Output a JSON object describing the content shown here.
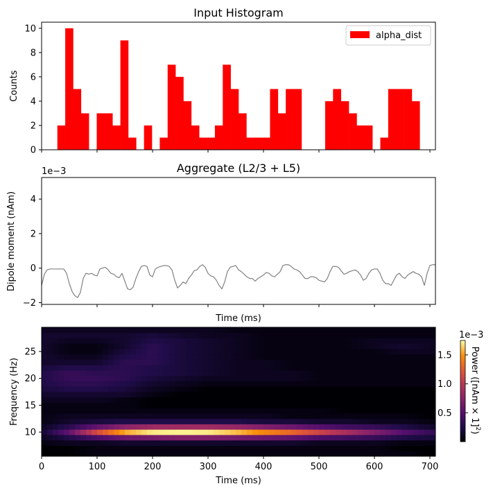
{
  "chart_data": [
    {
      "type": "bar",
      "title": "Input Histogram",
      "xlabel": "",
      "ylabel": "Counts",
      "xlim": [
        0,
        710
      ],
      "ylim": [
        0,
        10.5
      ],
      "yticks": [
        0,
        2,
        4,
        6,
        8,
        10
      ],
      "legend": "top-right",
      "series": [
        {
          "name": "alpha_dist",
          "color": "#ff0000",
          "bin_width": 14.2,
          "bins": [
            {
              "x": 28.4,
              "value": 2
            },
            {
              "x": 42.6,
              "value": 10
            },
            {
              "x": 56.8,
              "value": 5
            },
            {
              "x": 71.0,
              "value": 3
            },
            {
              "x": 99.4,
              "value": 3
            },
            {
              "x": 113.6,
              "value": 3
            },
            {
              "x": 127.8,
              "value": 2
            },
            {
              "x": 142.0,
              "value": 9
            },
            {
              "x": 156.2,
              "value": 1
            },
            {
              "x": 184.6,
              "value": 2
            },
            {
              "x": 213.0,
              "value": 1
            },
            {
              "x": 227.2,
              "value": 7
            },
            {
              "x": 241.4,
              "value": 6
            },
            {
              "x": 255.6,
              "value": 4
            },
            {
              "x": 269.8,
              "value": 2
            },
            {
              "x": 284.0,
              "value": 1
            },
            {
              "x": 298.2,
              "value": 1
            },
            {
              "x": 312.4,
              "value": 2
            },
            {
              "x": 326.6,
              "value": 7
            },
            {
              "x": 340.8,
              "value": 5
            },
            {
              "x": 355.0,
              "value": 3
            },
            {
              "x": 369.2,
              "value": 1
            },
            {
              "x": 383.4,
              "value": 1
            },
            {
              "x": 397.6,
              "value": 1
            },
            {
              "x": 411.8,
              "value": 5
            },
            {
              "x": 426.0,
              "value": 3
            },
            {
              "x": 440.2,
              "value": 5
            },
            {
              "x": 454.4,
              "value": 5
            },
            {
              "x": 511.2,
              "value": 4
            },
            {
              "x": 525.4,
              "value": 5
            },
            {
              "x": 539.6,
              "value": 4
            },
            {
              "x": 553.8,
              "value": 3
            },
            {
              "x": 568.0,
              "value": 2
            },
            {
              "x": 582.2,
              "value": 2
            },
            {
              "x": 610.6,
              "value": 1
            },
            {
              "x": 624.8,
              "value": 5
            },
            {
              "x": 639.0,
              "value": 5
            },
            {
              "x": 653.2,
              "value": 5
            },
            {
              "x": 667.4,
              "value": 4
            }
          ]
        }
      ]
    },
    {
      "type": "line",
      "title": "Aggregate (L2/3 + L5)",
      "xlabel": "Time (ms)",
      "ylabel": "Dipole moment (nAm)",
      "y_scale_label": "1e−3",
      "xlim": [
        0,
        710
      ],
      "ylim": [
        -2.1,
        5.25
      ],
      "yticks": [
        -2,
        0,
        2,
        4
      ],
      "grid": false,
      "series": [
        {
          "color": "#808080",
          "x": [
            0,
            5,
            10,
            15,
            20,
            25,
            30,
            35,
            40,
            45,
            50,
            55,
            60,
            65,
            70,
            75,
            80,
            85,
            90,
            95,
            100,
            105,
            110,
            115,
            120,
            125,
            130,
            135,
            140,
            145,
            150,
            155,
            160,
            165,
            170,
            175,
            180,
            185,
            190,
            195,
            200,
            205,
            210,
            215,
            220,
            225,
            230,
            235,
            240,
            245,
            250,
            255,
            260,
            265,
            270,
            275,
            280,
            285,
            290,
            295,
            300,
            305,
            310,
            315,
            320,
            325,
            330,
            335,
            340,
            345,
            350,
            355,
            360,
            365,
            370,
            375,
            380,
            385,
            390,
            395,
            400,
            405,
            410,
            415,
            420,
            425,
            430,
            435,
            440,
            445,
            450,
            455,
            460,
            465,
            470,
            475,
            480,
            485,
            490,
            495,
            500,
            505,
            510,
            515,
            520,
            525,
            530,
            535,
            540,
            545,
            550,
            555,
            560,
            565,
            570,
            575,
            580,
            585,
            590,
            595,
            600,
            605,
            610,
            615,
            620,
            625,
            630,
            635,
            640,
            645,
            650,
            655,
            660,
            665,
            670,
            675,
            680,
            685,
            690,
            695,
            700,
            705,
            710
          ],
          "values": [
            -1.0,
            -0.35,
            -0.1,
            -0.05,
            -0.05,
            -0.05,
            -0.05,
            -0.05,
            -0.05,
            -0.3,
            -0.9,
            -1.35,
            -1.6,
            -1.7,
            -1.4,
            -0.6,
            -0.3,
            -0.35,
            -0.3,
            -0.4,
            -0.45,
            -0.05,
            0.0,
            0.05,
            -0.1,
            -0.3,
            -0.35,
            -0.5,
            -0.55,
            -0.3,
            -0.75,
            -1.2,
            -1.25,
            -1.1,
            -0.6,
            -0.2,
            0.1,
            0.15,
            0.1,
            -0.4,
            -0.5,
            -0.05,
            0.05,
            0.1,
            0.15,
            0.15,
            0.1,
            -0.1,
            -0.7,
            -1.15,
            -1.0,
            -0.8,
            -0.9,
            -0.6,
            -0.4,
            -0.15,
            -0.1,
            0.1,
            0.2,
            0.05,
            -0.3,
            -0.45,
            -0.5,
            -0.7,
            -1.0,
            -1.2,
            -0.8,
            -0.2,
            0.05,
            0.1,
            0.15,
            -0.1,
            -0.2,
            -0.35,
            -0.5,
            -0.6,
            -0.6,
            -0.75,
            -0.6,
            -0.5,
            -0.4,
            -0.25,
            -0.3,
            -0.45,
            -0.5,
            -0.35,
            -0.2,
            0.15,
            0.2,
            0.2,
            0.1,
            -0.05,
            -0.1,
            -0.2,
            -0.4,
            -0.6,
            -0.6,
            -0.5,
            -0.5,
            -0.55,
            -0.7,
            -0.75,
            -0.8,
            -0.6,
            -0.2,
            0.1,
            0.1,
            0.05,
            -0.15,
            -0.35,
            -0.3,
            -0.2,
            -0.15,
            -0.1,
            -0.2,
            -0.4,
            -0.7,
            -0.6,
            -0.3,
            -0.1,
            -0.05,
            -0.05,
            -0.3,
            -0.7,
            -0.9,
            -0.9,
            -1.0,
            -0.7,
            -0.4,
            -0.3,
            -0.5,
            -0.6,
            -0.4,
            -0.3,
            -0.2,
            -0.3,
            -0.35,
            -0.5,
            -1.0,
            -0.3,
            0.15,
            0.2,
            0.2
          ]
        }
      ]
    },
    {
      "type": "heatmap",
      "title": "",
      "xlabel": "Time (ms)",
      "ylabel": "Frequency (Hz)",
      "xlim": [
        0,
        710
      ],
      "ylim": [
        5.5,
        29.5
      ],
      "xticks": [
        0,
        100,
        200,
        300,
        400,
        500,
        600,
        700
      ],
      "yticks": [
        10,
        15,
        20,
        25
      ],
      "colormap": "inferno",
      "colorbar": {
        "label": "Power ([nAm × 1]",
        "label_sup": "2",
        "label_end": ")",
        "scale_label": "1e−3",
        "range": [
          0,
          0.00175
        ],
        "ticks": [
          0.5,
          1.0,
          1.5
        ],
        "tick_labels": [
          "0.5",
          "1.0",
          "1.5"
        ]
      },
      "frequencies": [
        6,
        7,
        8,
        9,
        10,
        11,
        12,
        13,
        14,
        15,
        16,
        17,
        18,
        19,
        20,
        21,
        22,
        23,
        24,
        25,
        26,
        27,
        28,
        29
      ],
      "times": [
        0,
        50,
        100,
        150,
        200,
        250,
        300,
        350,
        400,
        450,
        500,
        550,
        600,
        650,
        700
      ],
      "power_mJ": [
        [
          0.0,
          0.0,
          0.05,
          0.05,
          0.05,
          0.05,
          0.05,
          0.05,
          0.05,
          0.05,
          0.05,
          0.05,
          0.05,
          0.05,
          0.0
        ],
        [
          0.0,
          0.0,
          0.05,
          0.05,
          0.05,
          0.05,
          0.05,
          0.05,
          0.05,
          0.05,
          0.05,
          0.05,
          0.05,
          0.0,
          0.0
        ],
        [
          0.05,
          0.1,
          0.1,
          0.15,
          0.15,
          0.15,
          0.15,
          0.15,
          0.15,
          0.15,
          0.1,
          0.1,
          0.1,
          0.05,
          0.05
        ],
        [
          0.1,
          0.25,
          0.45,
          0.6,
          0.65,
          0.7,
          0.7,
          0.65,
          0.6,
          0.55,
          0.45,
          0.4,
          0.35,
          0.25,
          0.2
        ],
        [
          0.15,
          0.55,
          1.15,
          1.55,
          1.7,
          1.72,
          1.7,
          1.6,
          1.45,
          1.3,
          1.1,
          0.9,
          0.7,
          0.5,
          0.35
        ],
        [
          0.1,
          0.3,
          0.55,
          0.75,
          0.85,
          0.85,
          0.85,
          0.8,
          0.7,
          0.6,
          0.5,
          0.4,
          0.35,
          0.25,
          0.15
        ],
        [
          0.05,
          0.15,
          0.2,
          0.25,
          0.25,
          0.25,
          0.25,
          0.25,
          0.2,
          0.2,
          0.15,
          0.15,
          0.1,
          0.1,
          0.05
        ],
        [
          0.05,
          0.1,
          0.1,
          0.1,
          0.1,
          0.1,
          0.1,
          0.1,
          0.1,
          0.05,
          0.05,
          0.05,
          0.05,
          0.05,
          0.0
        ],
        [
          0.05,
          0.05,
          0.05,
          0.05,
          0.05,
          0.05,
          0.05,
          0.05,
          0.05,
          0.05,
          0.05,
          0.0,
          0.0,
          0.0,
          0.0
        ],
        [
          0.05,
          0.05,
          0.05,
          0.05,
          0.0,
          0.0,
          0.0,
          0.0,
          0.0,
          0.0,
          0.0,
          0.0,
          0.0,
          0.0,
          0.0
        ],
        [
          0.1,
          0.1,
          0.1,
          0.05,
          0.0,
          0.0,
          0.0,
          0.0,
          0.0,
          0.0,
          0.0,
          0.0,
          0.0,
          0.0,
          0.0
        ],
        [
          0.15,
          0.15,
          0.15,
          0.15,
          0.05,
          0.0,
          0.0,
          0.0,
          0.0,
          0.0,
          0.0,
          0.0,
          0.0,
          0.0,
          0.0
        ],
        [
          0.2,
          0.25,
          0.25,
          0.2,
          0.1,
          0.05,
          0.0,
          0.0,
          0.0,
          0.0,
          0.0,
          0.0,
          0.0,
          0.0,
          0.0
        ],
        [
          0.25,
          0.3,
          0.3,
          0.25,
          0.15,
          0.1,
          0.05,
          0.05,
          0.05,
          0.05,
          0.05,
          0.05,
          0.05,
          0.05,
          0.05
        ],
        [
          0.25,
          0.35,
          0.35,
          0.3,
          0.2,
          0.15,
          0.1,
          0.1,
          0.1,
          0.1,
          0.05,
          0.05,
          0.05,
          0.05,
          0.05
        ],
        [
          0.25,
          0.35,
          0.3,
          0.3,
          0.25,
          0.2,
          0.15,
          0.1,
          0.1,
          0.1,
          0.05,
          0.05,
          0.05,
          0.05,
          0.05
        ],
        [
          0.2,
          0.25,
          0.25,
          0.3,
          0.25,
          0.2,
          0.15,
          0.1,
          0.1,
          0.05,
          0.05,
          0.05,
          0.05,
          0.05,
          0.05
        ],
        [
          0.15,
          0.15,
          0.15,
          0.3,
          0.3,
          0.2,
          0.15,
          0.1,
          0.1,
          0.05,
          0.05,
          0.05,
          0.05,
          0.05,
          0.05
        ],
        [
          0.15,
          0.1,
          0.1,
          0.25,
          0.3,
          0.2,
          0.15,
          0.1,
          0.05,
          0.05,
          0.05,
          0.05,
          0.05,
          0.05,
          0.05
        ],
        [
          0.15,
          0.05,
          0.05,
          0.2,
          0.3,
          0.2,
          0.15,
          0.1,
          0.05,
          0.05,
          0.05,
          0.05,
          0.05,
          0.1,
          0.1
        ],
        [
          0.15,
          0.05,
          0.05,
          0.15,
          0.3,
          0.2,
          0.15,
          0.1,
          0.05,
          0.05,
          0.05,
          0.05,
          0.1,
          0.15,
          0.1
        ],
        [
          0.15,
          0.1,
          0.1,
          0.15,
          0.25,
          0.2,
          0.15,
          0.1,
          0.05,
          0.05,
          0.05,
          0.05,
          0.1,
          0.1,
          0.1
        ],
        [
          0.15,
          0.15,
          0.15,
          0.15,
          0.2,
          0.15,
          0.1,
          0.1,
          0.05,
          0.05,
          0.05,
          0.05,
          0.05,
          0.05,
          0.05
        ],
        [
          0.1,
          0.1,
          0.1,
          0.1,
          0.1,
          0.1,
          0.1,
          0.05,
          0.05,
          0.05,
          0.05,
          0.05,
          0.05,
          0.05,
          0.05
        ]
      ]
    }
  ]
}
